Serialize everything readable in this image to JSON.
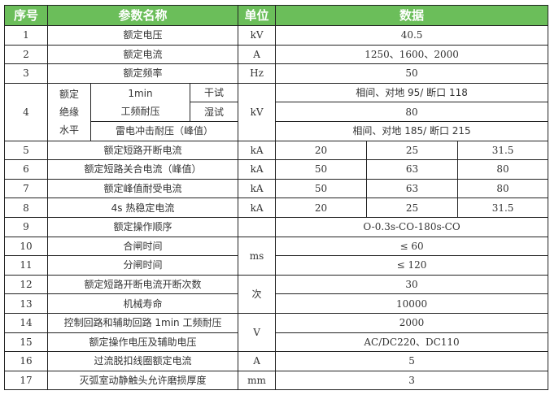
{
  "header": {
    "no": "序号",
    "name": "参数名称",
    "unit": "单位",
    "data": "数据"
  },
  "row4": {
    "no": "4",
    "group": [
      "额定",
      "绝缘",
      "水平"
    ],
    "freq_a": "1min",
    "freq_b": "工频耐压",
    "dry": "干试",
    "wet": "湿试",
    "lightning": "雷电冲击耐压（峰值）",
    "unit": "kV",
    "dry_val": "相间、对地 95/ 断口 118",
    "wet_val": "80",
    "lightning_val": "相间、对地 185/ 断口 215"
  },
  "rows": [
    {
      "no": "1",
      "name": "额定电压",
      "unit": "kV",
      "data": "40.5"
    },
    {
      "no": "2",
      "name": "额定电流",
      "unit": "A",
      "data": "1250、1600、2000"
    },
    {
      "no": "3",
      "name": "额定频率",
      "unit": "Hz",
      "data": "50"
    },
    {
      "no": "5",
      "name": "额定短路开断电流",
      "unit": "kA",
      "vals": [
        "20",
        "25",
        "31.5"
      ]
    },
    {
      "no": "6",
      "name": "额定短路关合电流（峰值）",
      "unit": "kA",
      "vals": [
        "50",
        "63",
        "80"
      ]
    },
    {
      "no": "7",
      "name": "额定峰值耐受电流",
      "unit": "kA",
      "vals": [
        "50",
        "63",
        "80"
      ]
    },
    {
      "no": "8",
      "name": "4s 热稳定电流",
      "unit": "kA",
      "vals": [
        "20",
        "25",
        "31.5"
      ]
    },
    {
      "no": "9",
      "name": "额定操作顺序",
      "unit": "",
      "data": "O-0.3s-CO-180s-CO"
    },
    {
      "no": "10",
      "name": "合闸时间",
      "unit": "ms",
      "data": "≤ 60"
    },
    {
      "no": "11",
      "name": "分闸时间",
      "data": "≤ 120"
    },
    {
      "no": "12",
      "name": "额定短路开断电流开断次数",
      "unit": "次",
      "data": "30"
    },
    {
      "no": "13",
      "name": "机械寿命",
      "data": "10000"
    },
    {
      "no": "14",
      "name": "控制回路和辅助回路 1min 工频耐压",
      "unit": "V",
      "data": "2000"
    },
    {
      "no": "15",
      "name": "额定操作电压及辅助电压",
      "data": "AC/DC220、DC110"
    },
    {
      "no": "16",
      "name": "过流脱扣线圈额定电流",
      "unit": "A",
      "data": "5"
    },
    {
      "no": "17",
      "name": "灭弧室动静触头允许磨损厚度",
      "unit": "mm",
      "data": "3"
    }
  ],
  "colors": {
    "header_bg": "#6BBE5A",
    "header_text": "#ffffff"
  }
}
